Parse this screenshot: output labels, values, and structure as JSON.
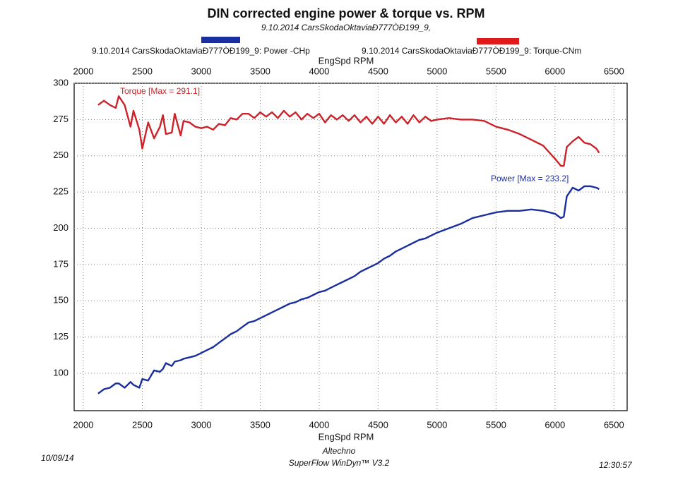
{
  "chart_data": {
    "type": "line",
    "title": "DIN corrected engine power & torque vs. RPM",
    "subtitle": "9.10.2014 CarsSkodaOktaviaÐ777ÒÐ199_9,",
    "xlabel": "EngSpd RPM",
    "top_xlabel": "EngSpd RPM",
    "annotations": [
      "Torque [Max = 291.1]",
      "Power [Max = 233.2]"
    ],
    "x": [
      2125,
      2175,
      2225,
      2275,
      2300,
      2350,
      2400,
      2425,
      2475,
      2500,
      2550,
      2600,
      2650,
      2675,
      2700,
      2750,
      2775,
      2825,
      2850,
      2900,
      2950,
      3000,
      3050,
      3100,
      3150,
      3200,
      3250,
      3300,
      3350,
      3400,
      3450,
      3500,
      3550,
      3600,
      3650,
      3700,
      3750,
      3800,
      3850,
      3900,
      3950,
      4000,
      4050,
      4100,
      4150,
      4200,
      4250,
      4300,
      4350,
      4400,
      4450,
      4500,
      4550,
      4600,
      4650,
      4700,
      4750,
      4800,
      4850,
      4900,
      4950,
      5000,
      5100,
      5200,
      5300,
      5400,
      5500,
      5600,
      5700,
      5800,
      5900,
      6000,
      6050,
      6075,
      6100,
      6150,
      6200,
      6250,
      6300,
      6350,
      6375
    ],
    "series": [
      {
        "name": "9.10.2014 CarsSkodaOktaviaÐ777ÒÐ199_9: Power -CHp",
        "color": "#1a2e9e",
        "values": [
          86,
          89,
          90,
          93,
          93,
          90,
          94,
          92,
          90,
          96,
          95,
          102,
          101,
          103,
          107,
          105,
          108,
          109,
          110,
          111,
          112,
          114,
          116,
          118,
          121,
          124,
          127,
          129,
          132,
          135,
          136,
          138,
          140,
          142,
          144,
          146,
          148,
          149,
          151,
          152,
          154,
          156,
          157,
          159,
          161,
          163,
          165,
          167,
          170,
          172,
          174,
          176,
          179,
          181,
          184,
          186,
          188,
          190,
          192,
          193,
          195,
          197,
          200,
          203,
          207,
          209,
          211,
          212,
          212,
          213,
          212,
          210,
          207,
          208,
          222,
          228,
          226,
          229,
          229,
          228,
          227
        ]
      },
      {
        "name": "9.10.2014 CarsSkodaOktaviaÐ777ÒÐ199_9: Torque-CNm",
        "color": "#cc2229",
        "values": [
          285,
          288,
          285,
          283,
          291.1,
          285,
          270,
          281,
          268,
          255,
          273,
          262,
          270,
          278,
          265,
          266,
          279,
          264,
          274,
          273,
          270,
          269,
          270,
          268,
          272,
          271,
          276,
          275,
          279,
          279,
          276,
          280,
          277,
          280,
          276,
          281,
          277,
          280,
          275,
          279,
          276,
          279,
          273,
          278,
          275,
          278,
          274,
          278,
          273,
          277,
          272,
          277,
          272,
          278,
          273,
          277,
          272,
          278,
          273,
          277,
          274,
          275,
          276,
          275,
          275,
          274,
          270,
          268,
          265,
          261,
          257,
          248,
          243,
          243,
          256,
          260,
          263,
          259,
          258,
          255,
          252
        ]
      }
    ],
    "xlim": [
      1922,
      6612
    ],
    "xticks": [
      2000,
      2500,
      3000,
      3500,
      4000,
      4500,
      5000,
      5500,
      6000,
      6500
    ],
    "ylim": [
      74.2,
      300
    ],
    "yticks": [
      100,
      125,
      150,
      175,
      200,
      225,
      250,
      275,
      300
    ],
    "grid": true
  },
  "footer": {
    "date": "10/09/14",
    "company": "Altechno",
    "software": "SuperFlow WinDyn™ V3.2",
    "time": "12:30:57"
  }
}
